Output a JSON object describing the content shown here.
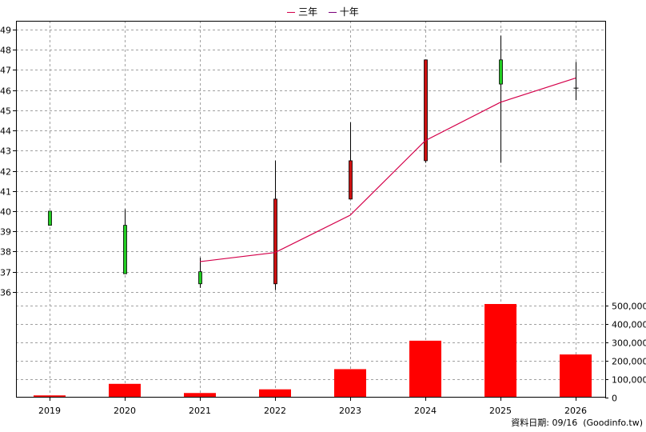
{
  "legend": [
    {
      "label": "三年",
      "color": "#d4004a"
    },
    {
      "label": "十年",
      "color": "#7a007a"
    }
  ],
  "footer": "資料日期: 09/16  (Goodinfo.tw)",
  "chart_data": [
    {
      "type": "candlestick",
      "categories": [
        "2019",
        "2020",
        "2021",
        "2022",
        "2023",
        "2024",
        "2025",
        "2026"
      ],
      "ylim": [
        35,
        49.5
      ],
      "yticks": [
        36,
        37,
        38,
        39,
        40,
        41,
        42,
        43,
        44,
        45,
        46,
        47,
        48,
        49
      ],
      "grid": true,
      "legend_position": "top-center",
      "candles": [
        {
          "x": "2019",
          "open": 40.0,
          "close": 39.3,
          "high": 40.0,
          "low": 39.3,
          "color": "#22cc22"
        },
        {
          "x": "2020",
          "open": 39.3,
          "close": 36.9,
          "high": 40.1,
          "low": 36.9,
          "color": "#22cc22"
        },
        {
          "x": "2021",
          "open": 37.0,
          "close": 36.4,
          "high": 37.7,
          "low": 36.2,
          "color": "#22cc22"
        },
        {
          "x": "2022",
          "open": 36.4,
          "close": 40.6,
          "high": 42.5,
          "low": 36.1,
          "color": "#cc1111"
        },
        {
          "x": "2023",
          "open": 40.6,
          "close": 42.5,
          "high": 44.4,
          "low": 40.6,
          "color": "#cc1111"
        },
        {
          "x": "2024",
          "open": 42.5,
          "close": 47.5,
          "high": 47.5,
          "low": 42.4,
          "color": "#cc1111"
        },
        {
          "x": "2025",
          "open": 47.5,
          "close": 46.3,
          "high": 48.7,
          "low": 42.4,
          "color": "#22cc22"
        },
        {
          "x": "2026",
          "open": 46.1,
          "close": 46.1,
          "high": 47.4,
          "low": 45.5,
          "color": "#000000"
        }
      ],
      "series": [
        {
          "name": "三年",
          "color": "#d4004a",
          "points": [
            [
              "2021",
              37.5
            ],
            [
              "2022",
              37.95
            ],
            [
              "2023",
              39.8
            ],
            [
              "2024",
              43.5
            ],
            [
              "2025",
              45.4
            ],
            [
              "2026",
              46.6
            ]
          ]
        }
      ]
    },
    {
      "type": "bar",
      "categories": [
        "2019",
        "2020",
        "2021",
        "2022",
        "2023",
        "2024",
        "2025",
        "2026"
      ],
      "values": [
        12000,
        75000,
        25000,
        45000,
        155000,
        310000,
        510000,
        235000
      ],
      "color": "#ff0000",
      "ylim": [
        0,
        510000
      ],
      "yticks": [
        0,
        100000,
        200000,
        300000,
        400000,
        500000
      ],
      "ytick_labels": [
        "0",
        "100,000",
        "200,000",
        "300,000",
        "400,000",
        "500,000"
      ],
      "grid": true
    }
  ]
}
